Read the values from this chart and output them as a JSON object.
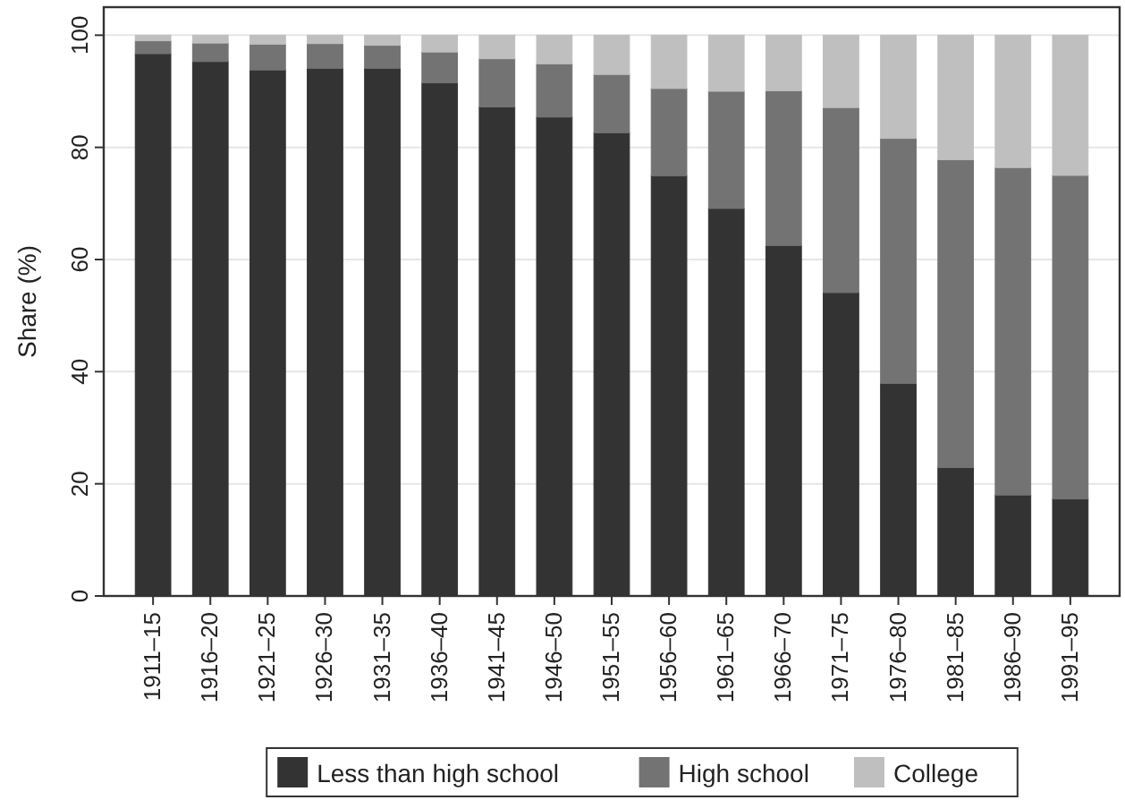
{
  "chart_data": {
    "type": "bar",
    "stacked": true,
    "ylabel": "Share (%)",
    "categories": [
      "1911–15",
      "1916–20",
      "1921–25",
      "1926–30",
      "1931–35",
      "1936–40",
      "1941–45",
      "1946–50",
      "1951–55",
      "1956–60",
      "1961–65",
      "1966–70",
      "1971–75",
      "1976–80",
      "1981–85",
      "1986–90",
      "1991–95"
    ],
    "series": [
      {
        "name": "Less than high school",
        "color": "#333333",
        "values": [
          96.7,
          95.3,
          93.8,
          94.1,
          94.1,
          91.5,
          87.2,
          85.4,
          82.6,
          74.9,
          69.1,
          62.5,
          54.1,
          37.9,
          22.9,
          18.0,
          17.3
        ]
      },
      {
        "name": "High school",
        "color": "#737373",
        "values": [
          2.3,
          3.3,
          4.6,
          4.4,
          4.1,
          5.5,
          8.6,
          9.5,
          10.4,
          15.6,
          20.9,
          27.6,
          33.0,
          43.7,
          54.9,
          58.4,
          57.7
        ]
      },
      {
        "name": "College",
        "color": "#bfbfbf",
        "values": [
          1.0,
          1.4,
          1.6,
          1.5,
          1.8,
          3.0,
          4.2,
          5.1,
          7.0,
          9.5,
          10.0,
          9.9,
          12.9,
          18.4,
          22.2,
          23.6,
          25.0
        ]
      }
    ],
    "ylim": [
      0,
      105
    ],
    "yticks": [
      0,
      20,
      40,
      60,
      80,
      100
    ],
    "grid": "y",
    "legend": "bottom"
  }
}
